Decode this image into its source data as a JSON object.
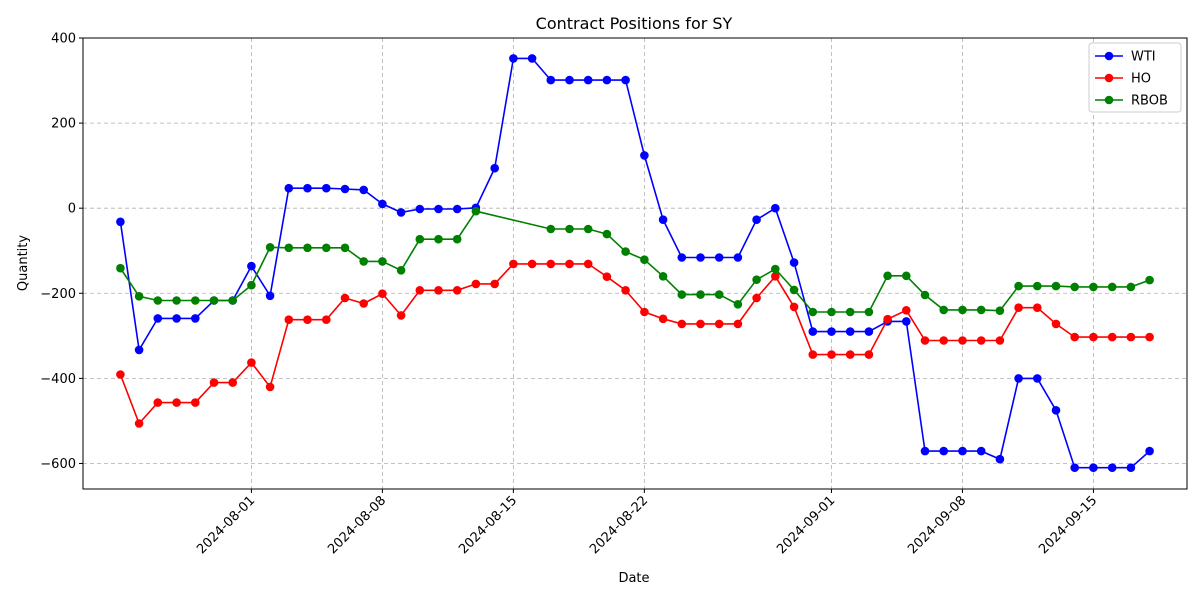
{
  "chart_data": {
    "type": "line",
    "title": "Contract Positions for SY",
    "xlabel": "Date",
    "ylabel": "Quantity",
    "x": [
      "2024-07-25",
      "2024-07-26",
      "2024-07-27",
      "2024-07-28",
      "2024-07-29",
      "2024-07-30",
      "2024-07-31",
      "2024-08-01",
      "2024-08-02",
      "2024-08-03",
      "2024-08-04",
      "2024-08-05",
      "2024-08-06",
      "2024-08-07",
      "2024-08-08",
      "2024-08-09",
      "2024-08-10",
      "2024-08-11",
      "2024-08-12",
      "2024-08-13",
      "2024-08-14",
      "2024-08-15",
      "2024-08-16",
      "2024-08-17",
      "2024-08-18",
      "2024-08-19",
      "2024-08-20",
      "2024-08-21",
      "2024-08-22",
      "2024-08-23",
      "2024-08-24",
      "2024-08-25",
      "2024-08-26",
      "2024-08-27",
      "2024-08-28",
      "2024-08-29",
      "2024-08-30",
      "2024-08-31",
      "2024-09-01",
      "2024-09-02",
      "2024-09-03",
      "2024-09-04",
      "2024-09-05",
      "2024-09-06",
      "2024-09-07",
      "2024-09-08",
      "2024-09-09",
      "2024-09-10",
      "2024-09-11",
      "2024-09-12",
      "2024-09-13",
      "2024-09-14",
      "2024-09-15",
      "2024-09-16",
      "2024-09-17",
      "2024-09-18"
    ],
    "xticks": [
      "2024-08-01",
      "2024-08-08",
      "2024-08-15",
      "2024-08-22",
      "2024-09-01",
      "2024-09-08",
      "2024-09-15"
    ],
    "yticks": [
      400,
      200,
      0,
      -200,
      -400,
      -600
    ],
    "ylim": [
      -660,
      400
    ],
    "xlim": [
      "2024-07-23",
      "2024-09-20"
    ],
    "grid": true,
    "legend_position": "top-right",
    "series": [
      {
        "name": "WTI",
        "color": "#0000ff",
        "values": [
          -32,
          -333,
          -259,
          -259,
          -259,
          -217,
          -217,
          -136,
          -206,
          47,
          47,
          47,
          45,
          43,
          10,
          -10,
          -2,
          -2,
          -2,
          1,
          94,
          352,
          352,
          301,
          301,
          301,
          301,
          301,
          124,
          -27,
          -116,
          -116,
          -116,
          -116,
          -27,
          0,
          -128,
          -290,
          -290,
          -290,
          -290,
          -266,
          -266,
          -571,
          -571,
          -571,
          -571,
          -590,
          -400,
          -400,
          -475,
          -610,
          -610,
          -610,
          -610,
          -571
        ]
      },
      {
        "name": "HO",
        "color": "#ff0000",
        "values": [
          -391,
          -506,
          -457,
          -457,
          -457,
          -410,
          -410,
          -363,
          -420,
          -262,
          -262,
          -262,
          -211,
          -224,
          -201,
          -252,
          -193,
          -193,
          -193,
          -178,
          -178,
          -131,
          -131,
          -131,
          -131,
          -131,
          -161,
          -193,
          -244,
          -260,
          -272,
          -272,
          -272,
          -272,
          -211,
          -160,
          -232,
          -344,
          -344,
          -344,
          -344,
          -261,
          -240,
          -311,
          -311,
          -311,
          -311,
          -311,
          -234,
          -234,
          -272,
          -303,
          -303,
          -303,
          -303,
          -303
        ]
      },
      {
        "name": "RBOB",
        "color": "#008000",
        "values": [
          -141,
          -207,
          -217,
          -217,
          -217,
          -217,
          -217,
          -181,
          -92,
          -93,
          -93,
          -93,
          -93,
          -125,
          -125,
          -146,
          -73,
          -73,
          -73,
          -7,
          null,
          null,
          null,
          -49,
          -49,
          -49,
          -61,
          -102,
          -121,
          -160,
          -203,
          -203,
          -203,
          -226,
          -168,
          -143,
          -192,
          -244,
          -244,
          -244,
          -244,
          -159,
          -159,
          -204,
          -239,
          -239,
          -239,
          -241,
          -183,
          -183,
          -183,
          -185,
          -185,
          -185,
          -185,
          -169
        ]
      }
    ]
  }
}
